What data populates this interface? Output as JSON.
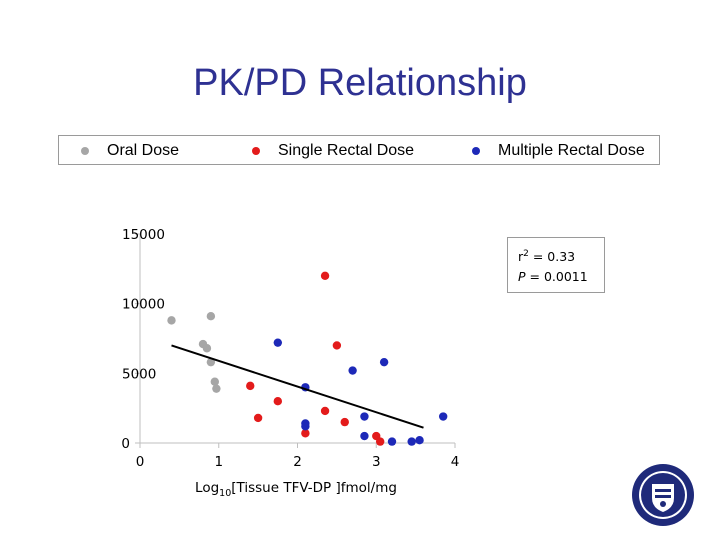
{
  "title": "PK/PD Relationship",
  "legend": [
    {
      "label": "Oral Dose",
      "color": "#a6a6a6"
    },
    {
      "label": "Single Rectal Dose",
      "color": "#e31b1b"
    },
    {
      "label": "Multiple Rectal Dose",
      "color": "#1d29b8"
    }
  ],
  "stats": {
    "r2_label": "r",
    "r2_sup": "2",
    "r2_value": " = 0.33",
    "p_label": "P",
    "p_value": " = 0.0011"
  },
  "chart_data": {
    "type": "scatter",
    "xlabel": "Log10[Tissue TFV-DP ]fmol/mg",
    "xlabel_sub": "10",
    "xticks": [
      0,
      1,
      2,
      3,
      4
    ],
    "yticks": [
      0,
      5000,
      10000,
      15000
    ],
    "xlim": [
      0,
      4
    ],
    "ylim": [
      0,
      15000
    ],
    "series": [
      {
        "name": "Oral Dose",
        "color": "#a6a6a6",
        "points": [
          [
            0.4,
            8800
          ],
          [
            0.9,
            9100
          ],
          [
            0.8,
            7100
          ],
          [
            0.85,
            6800
          ],
          [
            0.9,
            5800
          ],
          [
            0.95,
            4400
          ],
          [
            0.97,
            3900
          ]
        ]
      },
      {
        "name": "Single Rectal Dose",
        "color": "#e31b1b",
        "points": [
          [
            2.35,
            12000
          ],
          [
            2.5,
            7000
          ],
          [
            1.4,
            4100
          ],
          [
            1.75,
            3000
          ],
          [
            1.5,
            1800
          ],
          [
            2.35,
            2300
          ],
          [
            2.1,
            700
          ],
          [
            2.6,
            1500
          ],
          [
            3.0,
            500
          ],
          [
            3.05,
            100
          ]
        ]
      },
      {
        "name": "Multiple Rectal Dose",
        "color": "#1d29b8",
        "points": [
          [
            1.75,
            7200
          ],
          [
            3.1,
            5800
          ],
          [
            2.7,
            5200
          ],
          [
            2.1,
            4000
          ],
          [
            2.85,
            1900
          ],
          [
            2.1,
            1400
          ],
          [
            2.1,
            1200
          ],
          [
            3.85,
            1900
          ],
          [
            2.85,
            500
          ],
          [
            3.2,
            100
          ],
          [
            3.45,
            100
          ],
          [
            3.55,
            200
          ]
        ]
      }
    ],
    "trendline": {
      "x": [
        0.4,
        3.6
      ],
      "y": [
        7000,
        1100
      ]
    },
    "grid": false
  }
}
